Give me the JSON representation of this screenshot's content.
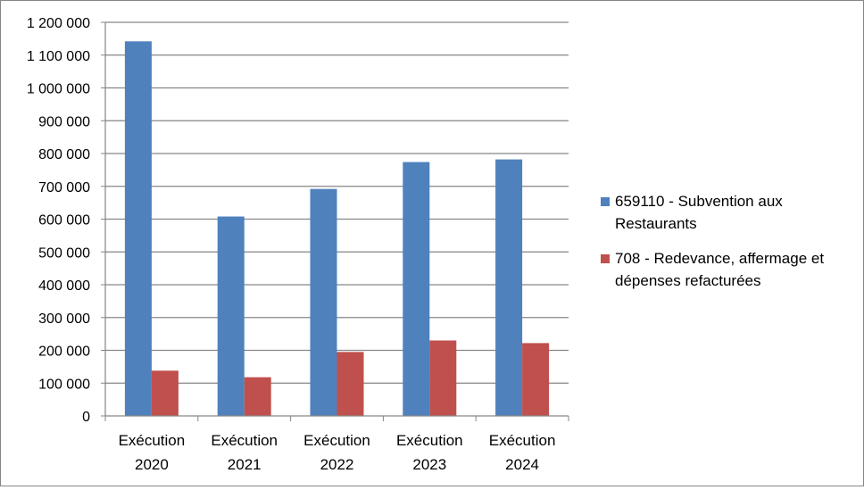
{
  "chart_data": {
    "type": "bar",
    "categories": [
      [
        "Exécution",
        "2020"
      ],
      [
        "Exécution",
        "2021"
      ],
      [
        "Exécution",
        "2022"
      ],
      [
        "Exécution",
        "2023"
      ],
      [
        "Exécution",
        "2024"
      ]
    ],
    "series": [
      {
        "name": [
          "659110 - Subvention aux",
          "Restaurants"
        ],
        "color": "#4F81BD",
        "values": [
          1142000,
          608000,
          692000,
          774000,
          782000
        ]
      },
      {
        "name": [
          "708 - Redevance, affermage et",
          "dépenses refacturées"
        ],
        "color": "#C0504D",
        "values": [
          138000,
          118000,
          195000,
          230000,
          222000
        ]
      }
    ],
    "yticks": [
      {
        "value": 0,
        "label": "0"
      },
      {
        "value": 100000,
        "label": "100 000"
      },
      {
        "value": 200000,
        "label": "200 000"
      },
      {
        "value": 300000,
        "label": "300 000"
      },
      {
        "value": 400000,
        "label": "400 000"
      },
      {
        "value": 500000,
        "label": "500 000"
      },
      {
        "value": 600000,
        "label": "600 000"
      },
      {
        "value": 700000,
        "label": "700 000"
      },
      {
        "value": 800000,
        "label": "800 000"
      },
      {
        "value": 900000,
        "label": "900 000"
      },
      {
        "value": 1000000,
        "label": "1 000 000"
      },
      {
        "value": 1100000,
        "label": "1 100 000"
      },
      {
        "value": 1200000,
        "label": "1 200 000"
      }
    ],
    "ylim": [
      0,
      1200000
    ],
    "grid": true,
    "legend": "right",
    "title": "",
    "xlabel": "",
    "ylabel": ""
  }
}
